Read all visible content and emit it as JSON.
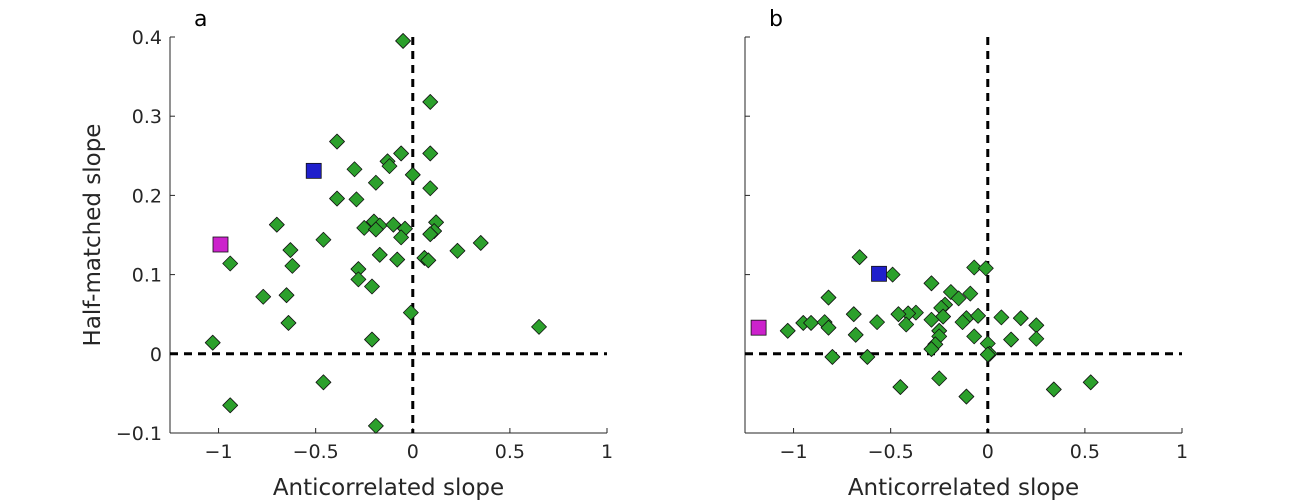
{
  "chart_data": [
    {
      "panel_label": "a",
      "type": "scatter",
      "xlabel": "Anticorrelated slope",
      "ylabel": "Half-matched slope",
      "xlim": [
        -1.25,
        1
      ],
      "ylim": [
        -0.1,
        0.4
      ],
      "xticks": [
        -1,
        -0.5,
        0,
        0.5,
        1
      ],
      "xtick_labels": [
        "−1",
        "−0.5",
        "0",
        "0.5",
        "1"
      ],
      "yticks": [
        -0.1,
        0,
        0.1,
        0.2,
        0.3,
        0.4
      ],
      "ytick_labels": [
        "−0.1",
        "0",
        "0.1",
        "0.2",
        "0.3",
        "0.4"
      ],
      "grid": false,
      "reference_lines": {
        "x": 0,
        "y": 0,
        "style": "dashed"
      },
      "colors": {
        "points": "#2ca02c",
        "blue_marker": "#1f1fcc",
        "magenta_marker": "#cc22cc"
      },
      "series": [
        {
          "marker": "diamond",
          "color": "#2ca02c",
          "points": [
            [
              -0.05,
              0.395
            ],
            [
              0.09,
              0.318
            ],
            [
              -0.39,
              0.268
            ],
            [
              -0.3,
              0.233
            ],
            [
              -0.06,
              0.253
            ],
            [
              0.09,
              0.253
            ],
            [
              -0.13,
              0.243
            ],
            [
              -0.12,
              0.237
            ],
            [
              0.0,
              0.226
            ],
            [
              -0.19,
              0.216
            ],
            [
              0.09,
              0.209
            ],
            [
              -0.39,
              0.196
            ],
            [
              -0.29,
              0.195
            ],
            [
              -0.7,
              0.163
            ],
            [
              -0.25,
              0.159
            ],
            [
              -0.2,
              0.167
            ],
            [
              -0.17,
              0.162
            ],
            [
              -0.1,
              0.163
            ],
            [
              -0.04,
              0.158
            ],
            [
              0.12,
              0.166
            ],
            [
              -0.19,
              0.157
            ],
            [
              0.11,
              0.155
            ],
            [
              0.09,
              0.151
            ],
            [
              -0.06,
              0.147
            ],
            [
              -0.46,
              0.144
            ],
            [
              0.35,
              0.14
            ],
            [
              -0.63,
              0.131
            ],
            [
              0.23,
              0.13
            ],
            [
              -0.17,
              0.125
            ],
            [
              -0.08,
              0.119
            ],
            [
              0.06,
              0.121
            ],
            [
              0.08,
              0.118
            ],
            [
              -0.94,
              0.114
            ],
            [
              -0.62,
              0.111
            ],
            [
              -0.28,
              0.107
            ],
            [
              -0.28,
              0.094
            ],
            [
              -0.21,
              0.085
            ],
            [
              -0.77,
              0.072
            ],
            [
              -0.65,
              0.074
            ],
            [
              -0.64,
              0.039
            ],
            [
              -0.01,
              0.052
            ],
            [
              0.65,
              0.034
            ],
            [
              -1.03,
              0.014
            ],
            [
              -0.21,
              0.018
            ],
            [
              -0.46,
              -0.036
            ],
            [
              -0.94,
              -0.065
            ],
            [
              -0.19,
              -0.091
            ]
          ]
        },
        {
          "marker": "square",
          "color": "#1f1fcc",
          "points": [
            [
              -0.51,
              0.231
            ]
          ]
        },
        {
          "marker": "square",
          "color": "#cc22cc",
          "points": [
            [
              -0.99,
              0.138
            ]
          ]
        }
      ]
    },
    {
      "panel_label": "b",
      "type": "scatter",
      "xlabel": "Anticorrelated slope",
      "ylabel": "",
      "xlim": [
        -1.25,
        1
      ],
      "ylim": [
        -0.1,
        0.4
      ],
      "xticks": [
        -1,
        -0.5,
        0,
        0.5,
        1
      ],
      "xtick_labels": [
        "−1",
        "−0.5",
        "0",
        "0.5",
        "1"
      ],
      "yticks": [
        -0.1,
        0,
        0.1,
        0.2,
        0.3,
        0.4
      ],
      "ytick_labels": [],
      "grid": false,
      "reference_lines": {
        "x": 0,
        "y": 0,
        "style": "dashed"
      },
      "colors": {
        "points": "#2ca02c",
        "blue_marker": "#1f1fcc",
        "magenta_marker": "#cc22cc"
      },
      "series": [
        {
          "marker": "diamond",
          "color": "#2ca02c",
          "points": [
            [
              -0.66,
              0.122
            ],
            [
              -0.49,
              0.1
            ],
            [
              -0.07,
              0.109
            ],
            [
              -0.01,
              0.108
            ],
            [
              -0.29,
              0.089
            ],
            [
              -0.19,
              0.078
            ],
            [
              -0.15,
              0.07
            ],
            [
              -0.09,
              0.076
            ],
            [
              -0.82,
              0.071
            ],
            [
              -0.22,
              0.062
            ],
            [
              -0.24,
              0.058
            ],
            [
              -0.37,
              0.052
            ],
            [
              -0.41,
              0.051
            ],
            [
              -0.46,
              0.05
            ],
            [
              -0.69,
              0.05
            ],
            [
              -0.23,
              0.047
            ],
            [
              -0.11,
              0.045
            ],
            [
              0.17,
              0.045
            ],
            [
              0.07,
              0.046
            ],
            [
              -0.05,
              0.048
            ],
            [
              -0.57,
              0.04
            ],
            [
              -0.29,
              0.043
            ],
            [
              -0.42,
              0.037
            ],
            [
              -0.95,
              0.039
            ],
            [
              -0.91,
              0.039
            ],
            [
              -0.84,
              0.04
            ],
            [
              0.25,
              0.036
            ],
            [
              -0.13,
              0.04
            ],
            [
              -1.03,
              0.029
            ],
            [
              -0.82,
              0.033
            ],
            [
              -0.68,
              0.024
            ],
            [
              -0.25,
              0.029
            ],
            [
              -0.25,
              0.022
            ],
            [
              -0.07,
              0.022
            ],
            [
              0.12,
              0.018
            ],
            [
              0.25,
              0.019
            ],
            [
              0.0,
              0.013
            ],
            [
              -0.27,
              0.012
            ],
            [
              -0.29,
              0.006
            ],
            [
              0.01,
              0.0
            ],
            [
              0.0,
              -0.001
            ],
            [
              -0.62,
              -0.004
            ],
            [
              -0.8,
              -0.004
            ],
            [
              -0.25,
              -0.031
            ],
            [
              -0.45,
              -0.042
            ],
            [
              0.34,
              -0.045
            ],
            [
              0.53,
              -0.036
            ],
            [
              -0.11,
              -0.054
            ]
          ]
        },
        {
          "marker": "square",
          "color": "#1f1fcc",
          "points": [
            [
              -0.56,
              0.101
            ]
          ]
        },
        {
          "marker": "square",
          "color": "#cc22cc",
          "points": [
            [
              -1.18,
              0.033
            ]
          ]
        }
      ]
    }
  ]
}
